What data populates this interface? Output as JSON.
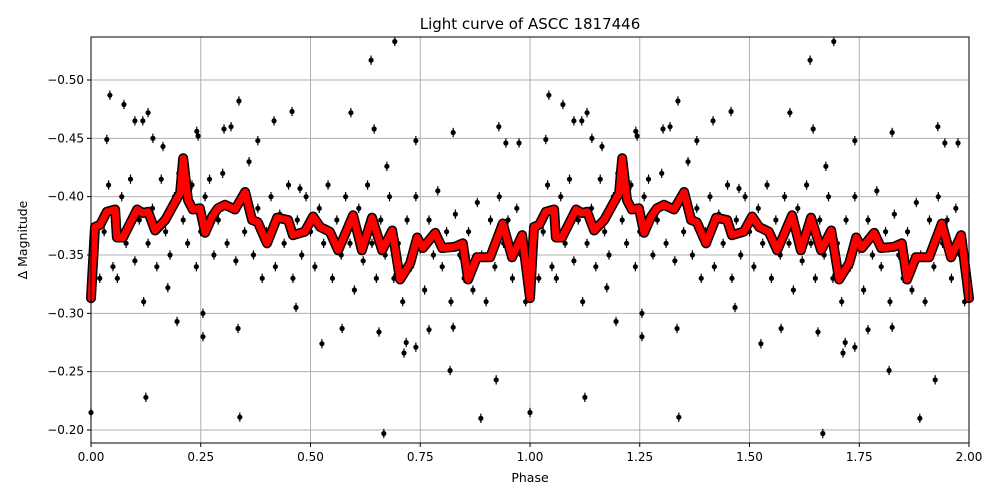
{
  "chart_data": {
    "type": "scatter",
    "title": "Light curve of ASCC 1817446",
    "xlabel": "Phase",
    "ylabel": "Δ Magnitude",
    "xlim": [
      0,
      2
    ],
    "ylim": [
      -0.189,
      -0.537
    ],
    "y_inverted": true,
    "grid": true,
    "xticks": [
      "0.00",
      "0.25",
      "0.50",
      "0.75",
      "1.00",
      "1.25",
      "1.50",
      "1.75",
      "2.00"
    ],
    "xtick_values": [
      0,
      0.25,
      0.5,
      0.75,
      1,
      1.25,
      1.5,
      1.75,
      2
    ],
    "yticks": [
      "−0.50",
      "−0.45",
      "−0.40",
      "−0.35",
      "−0.30",
      "−0.25",
      "−0.20"
    ],
    "ytick_values": [
      -0.5,
      -0.45,
      -0.4,
      -0.35,
      -0.3,
      -0.25,
      -0.2
    ],
    "colors": {
      "points": "#000000",
      "curve": "#ff0000",
      "curve_outline": "#000000",
      "grid": "#b0b0b0"
    },
    "points_yerr": 0.004,
    "points": [
      [
        0.0,
        -0.215
      ],
      [
        0.043,
        -0.487
      ],
      [
        0.036,
        -0.449
      ],
      [
        0.075,
        -0.479
      ],
      [
        0.1,
        -0.465
      ],
      [
        0.118,
        -0.465
      ],
      [
        0.13,
        -0.472
      ],
      [
        0.125,
        -0.228
      ],
      [
        0.141,
        -0.45
      ],
      [
        0.164,
        -0.443
      ],
      [
        0.175,
        -0.322
      ],
      [
        0.196,
        -0.293
      ],
      [
        0.241,
        -0.456
      ],
      [
        0.244,
        -0.452
      ],
      [
        0.255,
        -0.3
      ],
      [
        0.255,
        -0.28
      ],
      [
        0.303,
        -0.458
      ],
      [
        0.319,
        -0.46
      ],
      [
        0.337,
        -0.482
      ],
      [
        0.339,
        -0.211
      ],
      [
        0.335,
        -0.287
      ],
      [
        0.38,
        -0.448
      ],
      [
        0.417,
        -0.465
      ],
      [
        0.458,
        -0.473
      ],
      [
        0.467,
        -0.305
      ],
      [
        0.476,
        -0.407
      ],
      [
        0.526,
        -0.274
      ],
      [
        0.572,
        -0.287
      ],
      [
        0.592,
        -0.472
      ],
      [
        0.638,
        -0.517
      ],
      [
        0.645,
        -0.458
      ],
      [
        0.656,
        -0.284
      ],
      [
        0.667,
        -0.197
      ],
      [
        0.674,
        -0.426
      ],
      [
        0.692,
        -0.533
      ],
      [
        0.713,
        -0.266
      ],
      [
        0.718,
        -0.275
      ],
      [
        0.74,
        -0.448
      ],
      [
        0.74,
        -0.271
      ],
      [
        0.77,
        -0.286
      ],
      [
        0.818,
        -0.251
      ],
      [
        0.825,
        -0.455
      ],
      [
        0.825,
        -0.288
      ],
      [
        0.888,
        -0.21
      ],
      [
        0.923,
        -0.243
      ],
      [
        0.929,
        -0.46
      ],
      [
        0.945,
        -0.446
      ],
      [
        0.975,
        -0.446
      ],
      [
        0.01,
        -0.35
      ],
      [
        0.02,
        -0.33
      ],
      [
        0.03,
        -0.37
      ],
      [
        0.04,
        -0.41
      ],
      [
        0.05,
        -0.34
      ],
      [
        0.06,
        -0.33
      ],
      [
        0.07,
        -0.4
      ],
      [
        0.08,
        -0.36
      ],
      [
        0.09,
        -0.415
      ],
      [
        0.1,
        -0.345
      ],
      [
        0.11,
        -0.38
      ],
      [
        0.12,
        -0.31
      ],
      [
        0.13,
        -0.36
      ],
      [
        0.14,
        -0.39
      ],
      [
        0.15,
        -0.34
      ],
      [
        0.16,
        -0.415
      ],
      [
        0.17,
        -0.37
      ],
      [
        0.18,
        -0.35
      ],
      [
        0.19,
        -0.4
      ],
      [
        0.2,
        -0.42
      ],
      [
        0.21,
        -0.38
      ],
      [
        0.22,
        -0.36
      ],
      [
        0.23,
        -0.41
      ],
      [
        0.24,
        -0.34
      ],
      [
        0.25,
        -0.37
      ],
      [
        0.26,
        -0.4
      ],
      [
        0.27,
        -0.415
      ],
      [
        0.28,
        -0.35
      ],
      [
        0.29,
        -0.38
      ],
      [
        0.3,
        -0.42
      ],
      [
        0.31,
        -0.36
      ],
      [
        0.32,
        -0.39
      ],
      [
        0.33,
        -0.345
      ],
      [
        0.34,
        -0.4
      ],
      [
        0.35,
        -0.37
      ],
      [
        0.36,
        -0.43
      ],
      [
        0.37,
        -0.35
      ],
      [
        0.38,
        -0.39
      ],
      [
        0.39,
        -0.33
      ],
      [
        0.4,
        -0.37
      ],
      [
        0.41,
        -0.4
      ],
      [
        0.42,
        -0.34
      ],
      [
        0.43,
        -0.385
      ],
      [
        0.44,
        -0.36
      ],
      [
        0.45,
        -0.41
      ],
      [
        0.46,
        -0.33
      ],
      [
        0.47,
        -0.38
      ],
      [
        0.48,
        -0.35
      ],
      [
        0.49,
        -0.4
      ],
      [
        0.5,
        -0.37
      ],
      [
        0.51,
        -0.34
      ],
      [
        0.52,
        -0.39
      ],
      [
        0.53,
        -0.36
      ],
      [
        0.54,
        -0.41
      ],
      [
        0.55,
        -0.33
      ],
      [
        0.56,
        -0.38
      ],
      [
        0.57,
        -0.35
      ],
      [
        0.58,
        -0.4
      ],
      [
        0.59,
        -0.36
      ],
      [
        0.6,
        -0.32
      ],
      [
        0.61,
        -0.39
      ],
      [
        0.62,
        -0.345
      ],
      [
        0.63,
        -0.41
      ],
      [
        0.64,
        -0.36
      ],
      [
        0.65,
        -0.33
      ],
      [
        0.66,
        -0.38
      ],
      [
        0.67,
        -0.35
      ],
      [
        0.68,
        -0.4
      ],
      [
        0.69,
        -0.33
      ],
      [
        0.7,
        -0.36
      ],
      [
        0.71,
        -0.31
      ],
      [
        0.72,
        -0.38
      ],
      [
        0.73,
        -0.34
      ],
      [
        0.74,
        -0.4
      ],
      [
        0.75,
        -0.355
      ],
      [
        0.76,
        -0.32
      ],
      [
        0.77,
        -0.38
      ],
      [
        0.78,
        -0.35
      ],
      [
        0.79,
        -0.405
      ],
      [
        0.8,
        -0.34
      ],
      [
        0.81,
        -0.37
      ],
      [
        0.82,
        -0.31
      ],
      [
        0.83,
        -0.385
      ],
      [
        0.84,
        -0.35
      ],
      [
        0.85,
        -0.33
      ],
      [
        0.86,
        -0.37
      ],
      [
        0.87,
        -0.32
      ],
      [
        0.88,
        -0.395
      ],
      [
        0.89,
        -0.35
      ],
      [
        0.9,
        -0.31
      ],
      [
        0.91,
        -0.38
      ],
      [
        0.92,
        -0.34
      ],
      [
        0.93,
        -0.4
      ],
      [
        0.94,
        -0.36
      ],
      [
        0.95,
        -0.38
      ],
      [
        0.96,
        -0.33
      ],
      [
        0.97,
        -0.39
      ],
      [
        0.98,
        -0.35
      ],
      [
        0.99,
        -0.31
      ],
      [
        1.0,
        -0.215
      ],
      [
        1.043,
        -0.487
      ],
      [
        1.036,
        -0.449
      ],
      [
        1.075,
        -0.479
      ],
      [
        1.1,
        -0.465
      ],
      [
        1.118,
        -0.465
      ],
      [
        1.13,
        -0.472
      ],
      [
        1.125,
        -0.228
      ],
      [
        1.141,
        -0.45
      ],
      [
        1.164,
        -0.443
      ],
      [
        1.175,
        -0.322
      ],
      [
        1.196,
        -0.293
      ],
      [
        1.241,
        -0.456
      ],
      [
        1.244,
        -0.452
      ],
      [
        1.255,
        -0.3
      ],
      [
        1.255,
        -0.28
      ],
      [
        1.303,
        -0.458
      ],
      [
        1.319,
        -0.46
      ],
      [
        1.337,
        -0.482
      ],
      [
        1.339,
        -0.211
      ],
      [
        1.335,
        -0.287
      ],
      [
        1.38,
        -0.448
      ],
      [
        1.417,
        -0.465
      ],
      [
        1.458,
        -0.473
      ],
      [
        1.467,
        -0.305
      ],
      [
        1.476,
        -0.407
      ],
      [
        1.526,
        -0.274
      ],
      [
        1.572,
        -0.287
      ],
      [
        1.592,
        -0.472
      ],
      [
        1.638,
        -0.517
      ],
      [
        1.645,
        -0.458
      ],
      [
        1.656,
        -0.284
      ],
      [
        1.667,
        -0.197
      ],
      [
        1.674,
        -0.426
      ],
      [
        1.692,
        -0.533
      ],
      [
        1.713,
        -0.266
      ],
      [
        1.718,
        -0.275
      ],
      [
        1.74,
        -0.448
      ],
      [
        1.74,
        -0.271
      ],
      [
        1.77,
        -0.286
      ],
      [
        1.818,
        -0.251
      ],
      [
        1.825,
        -0.455
      ],
      [
        1.825,
        -0.288
      ],
      [
        1.888,
        -0.21
      ],
      [
        1.923,
        -0.243
      ],
      [
        1.929,
        -0.46
      ],
      [
        1.945,
        -0.446
      ],
      [
        1.975,
        -0.446
      ],
      [
        1.01,
        -0.35
      ],
      [
        1.02,
        -0.33
      ],
      [
        1.03,
        -0.37
      ],
      [
        1.04,
        -0.41
      ],
      [
        1.05,
        -0.34
      ],
      [
        1.06,
        -0.33
      ],
      [
        1.07,
        -0.4
      ],
      [
        1.08,
        -0.36
      ],
      [
        1.09,
        -0.415
      ],
      [
        1.1,
        -0.345
      ],
      [
        1.11,
        -0.38
      ],
      [
        1.12,
        -0.31
      ],
      [
        1.13,
        -0.36
      ],
      [
        1.14,
        -0.39
      ],
      [
        1.15,
        -0.34
      ],
      [
        1.16,
        -0.415
      ],
      [
        1.17,
        -0.37
      ],
      [
        1.18,
        -0.35
      ],
      [
        1.19,
        -0.4
      ],
      [
        1.2,
        -0.42
      ],
      [
        1.21,
        -0.38
      ],
      [
        1.22,
        -0.36
      ],
      [
        1.23,
        -0.41
      ],
      [
        1.24,
        -0.34
      ],
      [
        1.25,
        -0.37
      ],
      [
        1.26,
        -0.4
      ],
      [
        1.27,
        -0.415
      ],
      [
        1.28,
        -0.35
      ],
      [
        1.29,
        -0.38
      ],
      [
        1.3,
        -0.42
      ],
      [
        1.31,
        -0.36
      ],
      [
        1.32,
        -0.39
      ],
      [
        1.33,
        -0.345
      ],
      [
        1.34,
        -0.4
      ],
      [
        1.35,
        -0.37
      ],
      [
        1.36,
        -0.43
      ],
      [
        1.37,
        -0.35
      ],
      [
        1.38,
        -0.39
      ],
      [
        1.39,
        -0.33
      ],
      [
        1.4,
        -0.37
      ],
      [
        1.41,
        -0.4
      ],
      [
        1.42,
        -0.34
      ],
      [
        1.43,
        -0.385
      ],
      [
        1.44,
        -0.36
      ],
      [
        1.45,
        -0.41
      ],
      [
        1.46,
        -0.33
      ],
      [
        1.47,
        -0.38
      ],
      [
        1.48,
        -0.35
      ],
      [
        1.49,
        -0.4
      ],
      [
        1.5,
        -0.37
      ],
      [
        1.51,
        -0.34
      ],
      [
        1.52,
        -0.39
      ],
      [
        1.53,
        -0.36
      ],
      [
        1.54,
        -0.41
      ],
      [
        1.55,
        -0.33
      ],
      [
        1.56,
        -0.38
      ],
      [
        1.57,
        -0.35
      ],
      [
        1.58,
        -0.4
      ],
      [
        1.59,
        -0.36
      ],
      [
        1.6,
        -0.32
      ],
      [
        1.61,
        -0.39
      ],
      [
        1.62,
        -0.345
      ],
      [
        1.63,
        -0.41
      ],
      [
        1.64,
        -0.36
      ],
      [
        1.65,
        -0.33
      ],
      [
        1.66,
        -0.38
      ],
      [
        1.67,
        -0.35
      ],
      [
        1.68,
        -0.4
      ],
      [
        1.69,
        -0.33
      ],
      [
        1.7,
        -0.36
      ],
      [
        1.71,
        -0.31
      ],
      [
        1.72,
        -0.38
      ],
      [
        1.73,
        -0.34
      ],
      [
        1.74,
        -0.4
      ],
      [
        1.75,
        -0.355
      ],
      [
        1.76,
        -0.32
      ],
      [
        1.77,
        -0.38
      ],
      [
        1.78,
        -0.35
      ],
      [
        1.79,
        -0.405
      ],
      [
        1.8,
        -0.34
      ],
      [
        1.81,
        -0.37
      ],
      [
        1.82,
        -0.31
      ],
      [
        1.83,
        -0.385
      ],
      [
        1.84,
        -0.35
      ],
      [
        1.85,
        -0.33
      ],
      [
        1.86,
        -0.37
      ],
      [
        1.87,
        -0.32
      ],
      [
        1.88,
        -0.395
      ],
      [
        1.89,
        -0.35
      ],
      [
        1.9,
        -0.31
      ],
      [
        1.91,
        -0.38
      ],
      [
        1.92,
        -0.34
      ],
      [
        1.93,
        -0.4
      ],
      [
        1.94,
        -0.36
      ],
      [
        1.95,
        -0.38
      ],
      [
        1.96,
        -0.33
      ],
      [
        1.97,
        -0.39
      ],
      [
        1.98,
        -0.35
      ],
      [
        1.99,
        -0.31
      ]
    ],
    "curve": [
      [
        0.0,
        -0.313
      ],
      [
        0.009,
        -0.374
      ],
      [
        0.021,
        -0.376
      ],
      [
        0.036,
        -0.387
      ],
      [
        0.055,
        -0.389
      ],
      [
        0.059,
        -0.365
      ],
      [
        0.073,
        -0.365
      ],
      [
        0.105,
        -0.389
      ],
      [
        0.118,
        -0.386
      ],
      [
        0.13,
        -0.387
      ],
      [
        0.146,
        -0.371
      ],
      [
        0.169,
        -0.38
      ],
      [
        0.191,
        -0.395
      ],
      [
        0.203,
        -0.403
      ],
      [
        0.21,
        -0.433
      ],
      [
        0.221,
        -0.397
      ],
      [
        0.232,
        -0.389
      ],
      [
        0.248,
        -0.39
      ],
      [
        0.26,
        -0.369
      ],
      [
        0.276,
        -0.383
      ],
      [
        0.289,
        -0.39
      ],
      [
        0.305,
        -0.393
      ],
      [
        0.328,
        -0.389
      ],
      [
        0.351,
        -0.404
      ],
      [
        0.367,
        -0.38
      ],
      [
        0.38,
        -0.378
      ],
      [
        0.401,
        -0.36
      ],
      [
        0.424,
        -0.382
      ],
      [
        0.449,
        -0.38
      ],
      [
        0.46,
        -0.367
      ],
      [
        0.487,
        -0.37
      ],
      [
        0.506,
        -0.383
      ],
      [
        0.522,
        -0.374
      ],
      [
        0.544,
        -0.37
      ],
      [
        0.563,
        -0.354
      ],
      [
        0.597,
        -0.384
      ],
      [
        0.617,
        -0.354
      ],
      [
        0.64,
        -0.382
      ],
      [
        0.663,
        -0.354
      ],
      [
        0.686,
        -0.371
      ],
      [
        0.704,
        -0.329
      ],
      [
        0.727,
        -0.343
      ],
      [
        0.743,
        -0.365
      ],
      [
        0.756,
        -0.356
      ],
      [
        0.784,
        -0.369
      ],
      [
        0.8,
        -0.356
      ],
      [
        0.829,
        -0.357
      ],
      [
        0.847,
        -0.36
      ],
      [
        0.859,
        -0.329
      ],
      [
        0.879,
        -0.348
      ],
      [
        0.909,
        -0.348
      ],
      [
        0.938,
        -0.377
      ],
      [
        0.959,
        -0.348
      ],
      [
        0.982,
        -0.367
      ],
      [
        1.0,
        -0.313
      ],
      [
        1.009,
        -0.374
      ],
      [
        1.021,
        -0.376
      ],
      [
        1.036,
        -0.387
      ],
      [
        1.055,
        -0.389
      ],
      [
        1.059,
        -0.365
      ],
      [
        1.073,
        -0.365
      ],
      [
        1.105,
        -0.389
      ],
      [
        1.118,
        -0.386
      ],
      [
        1.13,
        -0.387
      ],
      [
        1.146,
        -0.371
      ],
      [
        1.169,
        -0.38
      ],
      [
        1.191,
        -0.395
      ],
      [
        1.203,
        -0.403
      ],
      [
        1.21,
        -0.433
      ],
      [
        1.221,
        -0.397
      ],
      [
        1.232,
        -0.389
      ],
      [
        1.248,
        -0.39
      ],
      [
        1.26,
        -0.369
      ],
      [
        1.276,
        -0.383
      ],
      [
        1.289,
        -0.39
      ],
      [
        1.305,
        -0.393
      ],
      [
        1.328,
        -0.389
      ],
      [
        1.351,
        -0.404
      ],
      [
        1.367,
        -0.38
      ],
      [
        1.38,
        -0.378
      ],
      [
        1.401,
        -0.36
      ],
      [
        1.424,
        -0.382
      ],
      [
        1.449,
        -0.38
      ],
      [
        1.46,
        -0.367
      ],
      [
        1.487,
        -0.37
      ],
      [
        1.506,
        -0.383
      ],
      [
        1.522,
        -0.374
      ],
      [
        1.544,
        -0.37
      ],
      [
        1.563,
        -0.354
      ],
      [
        1.597,
        -0.384
      ],
      [
        1.617,
        -0.354
      ],
      [
        1.64,
        -0.382
      ],
      [
        1.663,
        -0.354
      ],
      [
        1.686,
        -0.371
      ],
      [
        1.704,
        -0.329
      ],
      [
        1.727,
        -0.343
      ],
      [
        1.743,
        -0.365
      ],
      [
        1.756,
        -0.356
      ],
      [
        1.784,
        -0.369
      ],
      [
        1.8,
        -0.356
      ],
      [
        1.829,
        -0.357
      ],
      [
        1.847,
        -0.36
      ],
      [
        1.859,
        -0.329
      ],
      [
        1.879,
        -0.348
      ],
      [
        1.909,
        -0.348
      ],
      [
        1.938,
        -0.377
      ],
      [
        1.959,
        -0.348
      ],
      [
        1.982,
        -0.367
      ],
      [
        2.0,
        -0.313
      ]
    ]
  }
}
